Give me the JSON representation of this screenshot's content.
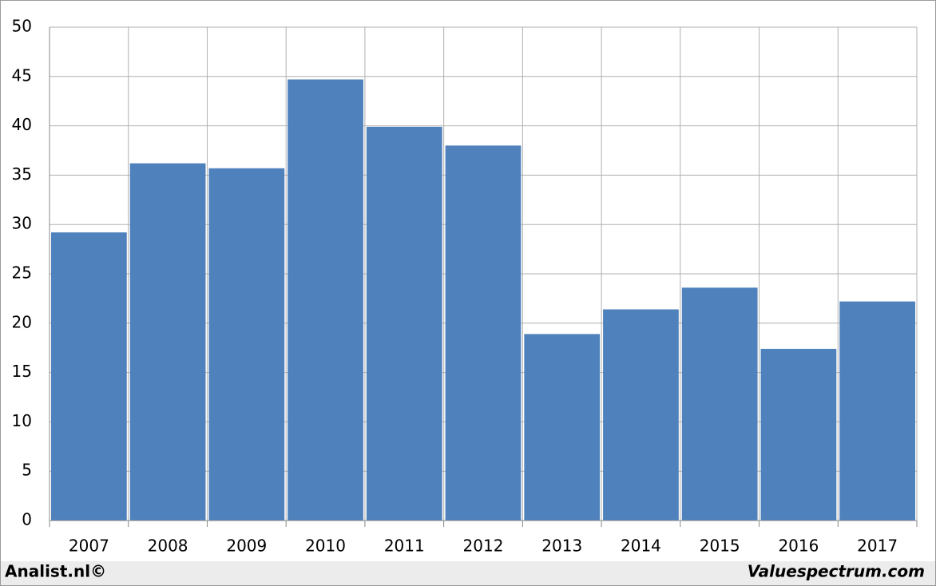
{
  "chart_data": {
    "type": "bar",
    "categories": [
      "2007",
      "2008",
      "2009",
      "2010",
      "2011",
      "2012",
      "2013",
      "2014",
      "2015",
      "2016",
      "2017"
    ],
    "values": [
      29.2,
      36.2,
      35.7,
      44.7,
      39.9,
      38.0,
      18.9,
      21.4,
      23.6,
      17.4,
      22.2
    ],
    "color": "#4f81bd",
    "ylim": [
      0,
      50
    ],
    "yticks": [
      0,
      5,
      10,
      15,
      20,
      25,
      30,
      35,
      40,
      45,
      50
    ],
    "grid": true,
    "credit": "Analist.nl©",
    "source": "Valuespectrum.com"
  }
}
